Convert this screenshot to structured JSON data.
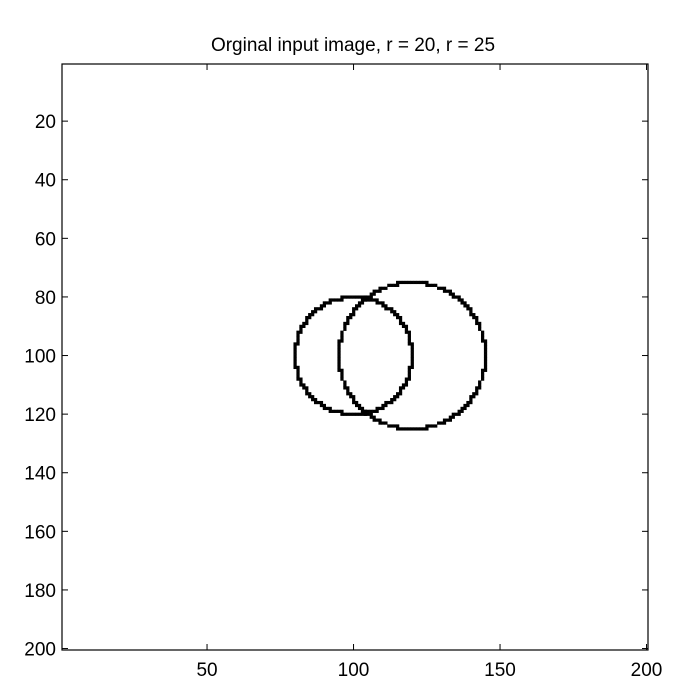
{
  "chart_data": {
    "type": "image",
    "title": "Orginal input image, r = 20, r = 25",
    "xlim": [
      0.5,
      200.5
    ],
    "ylim": [
      0.5,
      200.5
    ],
    "y_reversed": true,
    "x_ticks": [
      50,
      100,
      150,
      200
    ],
    "y_ticks": [
      20,
      40,
      60,
      80,
      100,
      120,
      140,
      160,
      180,
      200
    ],
    "grid": false,
    "circles": [
      {
        "cx": 100,
        "cy": 100,
        "r": 20
      },
      {
        "cx": 120,
        "cy": 100,
        "r": 25
      }
    ],
    "colors": {
      "background": "#ffffff",
      "stroke": "#000000"
    }
  }
}
